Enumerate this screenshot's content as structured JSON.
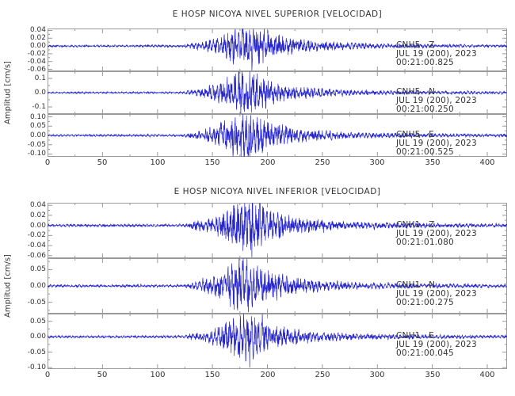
{
  "figure": {
    "background": "#ffffff",
    "waveform_color": "#2626cc",
    "axis_color": "#9a9a9a",
    "text_color": "#333333"
  },
  "chart_data": [
    {
      "type": "line",
      "title": "E HOSP NICOYA NIVEL SUPERIOR [VELOCIDAD]",
      "ylabel": "Amplitud [cm/s]",
      "xlabel": "",
      "xlim": [
        0,
        418
      ],
      "xticks": [
        0,
        50,
        100,
        150,
        200,
        250,
        300,
        350,
        400
      ],
      "xtick_minor_interval": 25,
      "grid": false,
      "legend": "none",
      "series": [
        {
          "name": "CNH5 Z",
          "name_label": "CNH5   Z",
          "station": "CNH5",
          "component": "Z",
          "date_label": "JUL 19 (200), 2023",
          "time_label": "00:21:00.825",
          "ylim": [
            -0.065,
            0.045
          ],
          "ytick_values": [
            0.04,
            0.02,
            0,
            -0.02,
            -0.04,
            -0.06
          ],
          "ytick_labels": [
            "0.04",
            "0.02",
            "0.00",
            "-0.02",
            "-0.04",
            "-0.06"
          ],
          "peak_amplitude": 0.043,
          "envelope": [
            [
              0,
              0.05
            ],
            [
              100,
              0.055
            ],
            [
              124,
              0.06
            ],
            [
              130,
              0.14
            ],
            [
              140,
              0.22
            ],
            [
              152,
              0.35
            ],
            [
              162,
              0.6
            ],
            [
              172,
              0.95
            ],
            [
              185,
              1.0
            ],
            [
              196,
              0.8
            ],
            [
              208,
              0.55
            ],
            [
              220,
              0.4
            ],
            [
              235,
              0.3
            ],
            [
              252,
              0.22
            ],
            [
              272,
              0.17
            ],
            [
              295,
              0.13
            ],
            [
              320,
              0.11
            ],
            [
              350,
              0.09
            ],
            [
              380,
              0.08
            ],
            [
              418,
              0.07
            ]
          ],
          "spikes": [
            [
              186,
              -0.063
            ]
          ],
          "seed": 11
        },
        {
          "name": "CNH5 N",
          "name_label": "CNH5   N",
          "station": "CNH5",
          "component": "N",
          "date_label": "JUL 19 (200), 2023",
          "time_label": "00:21:00.250",
          "ylim": [
            -0.15,
            0.15
          ],
          "ytick_values": [
            0.1,
            0,
            -0.1
          ],
          "ytick_labels": [
            "0.1",
            "0.0",
            "-0.1"
          ],
          "peak_amplitude": 0.125,
          "envelope": [
            [
              0,
              0.04
            ],
            [
              100,
              0.045
            ],
            [
              124,
              0.05
            ],
            [
              130,
              0.12
            ],
            [
              140,
              0.2
            ],
            [
              150,
              0.35
            ],
            [
              160,
              0.62
            ],
            [
              170,
              0.95
            ],
            [
              182,
              1.0
            ],
            [
              194,
              0.78
            ],
            [
              206,
              0.5
            ],
            [
              220,
              0.35
            ],
            [
              235,
              0.26
            ],
            [
              252,
              0.19
            ],
            [
              272,
              0.14
            ],
            [
              295,
              0.11
            ],
            [
              320,
              0.09
            ],
            [
              350,
              0.08
            ],
            [
              380,
              0.07
            ],
            [
              418,
              0.06
            ]
          ],
          "spikes": [],
          "seed": 22
        },
        {
          "name": "CNH5 E",
          "name_label": "CNH5   E",
          "station": "CNH5",
          "component": "E",
          "date_label": "JUL 19 (200), 2023",
          "time_label": "00:21:00.525",
          "ylim": [
            -0.115,
            0.115
          ],
          "ytick_values": [
            0.1,
            0.05,
            0,
            -0.05,
            -0.1
          ],
          "ytick_labels": [
            "0.10",
            "0.05",
            "0.00",
            "-0.05",
            "-0.10"
          ],
          "peak_amplitude": 0.105,
          "envelope": [
            [
              0,
              0.04
            ],
            [
              100,
              0.05
            ],
            [
              124,
              0.055
            ],
            [
              130,
              0.13
            ],
            [
              140,
              0.22
            ],
            [
              152,
              0.38
            ],
            [
              162,
              0.65
            ],
            [
              172,
              0.95
            ],
            [
              184,
              1.0
            ],
            [
              196,
              0.75
            ],
            [
              208,
              0.5
            ],
            [
              220,
              0.36
            ],
            [
              235,
              0.27
            ],
            [
              252,
              0.2
            ],
            [
              272,
              0.15
            ],
            [
              295,
              0.12
            ],
            [
              320,
              0.1
            ],
            [
              350,
              0.085
            ],
            [
              380,
              0.075
            ],
            [
              418,
              0.065
            ]
          ],
          "spikes": [
            [
              184,
              -0.112
            ]
          ],
          "seed": 33
        }
      ]
    },
    {
      "type": "line",
      "title": "E HOSP NICOYA NIVEL INFERIOR [VELOCIDAD]",
      "ylabel": "Amplitud [cm/s]",
      "xlabel": "",
      "xlim": [
        0,
        418
      ],
      "xticks": [
        0,
        50,
        100,
        150,
        200,
        250,
        300,
        350,
        400
      ],
      "xtick_minor_interval": 25,
      "grid": false,
      "legend": "none",
      "series": [
        {
          "name": "CNH1 Z",
          "name_label": "CNH1   Z",
          "station": "CNH1",
          "component": "Z",
          "date_label": "JUL 19 (200), 2023",
          "time_label": "00:21:01.080",
          "ylim": [
            -0.065,
            0.045
          ],
          "ytick_values": [
            0.04,
            0.02,
            0,
            -0.02,
            -0.04,
            -0.06
          ],
          "ytick_labels": [
            "0.04",
            "0.02",
            "0.00",
            "-0.02",
            "-0.04",
            "-0.06"
          ],
          "peak_amplitude": 0.042,
          "envelope": [
            [
              0,
              0.05
            ],
            [
              100,
              0.055
            ],
            [
              124,
              0.06
            ],
            [
              130,
              0.14
            ],
            [
              140,
              0.22
            ],
            [
              152,
              0.36
            ],
            [
              162,
              0.62
            ],
            [
              172,
              0.95
            ],
            [
              185,
              1.0
            ],
            [
              196,
              0.78
            ],
            [
              208,
              0.52
            ],
            [
              220,
              0.38
            ],
            [
              235,
              0.29
            ],
            [
              252,
              0.21
            ],
            [
              272,
              0.16
            ],
            [
              295,
              0.13
            ],
            [
              320,
              0.11
            ],
            [
              350,
              0.09
            ],
            [
              380,
              0.08
            ],
            [
              418,
              0.07
            ]
          ],
          "spikes": [
            [
              186,
              -0.063
            ]
          ],
          "seed": 44
        },
        {
          "name": "CNH1 N",
          "name_label": "CNH1   N",
          "station": "CNH1",
          "component": "N",
          "date_label": "JUL 19 (200), 2023",
          "time_label": "00:21:00.275",
          "ylim": [
            -0.085,
            0.085
          ],
          "ytick_values": [
            0.05,
            0,
            -0.05
          ],
          "ytick_labels": [
            "0.05",
            "0.00",
            "-0.05"
          ],
          "peak_amplitude": 0.068,
          "envelope": [
            [
              0,
              0.045
            ],
            [
              100,
              0.05
            ],
            [
              124,
              0.055
            ],
            [
              130,
              0.12
            ],
            [
              140,
              0.2
            ],
            [
              150,
              0.34
            ],
            [
              160,
              0.6
            ],
            [
              170,
              0.95
            ],
            [
              180,
              1.0
            ],
            [
              192,
              0.78
            ],
            [
              205,
              0.5
            ],
            [
              220,
              0.35
            ],
            [
              235,
              0.27
            ],
            [
              252,
              0.2
            ],
            [
              272,
              0.15
            ],
            [
              295,
              0.12
            ],
            [
              320,
              0.1
            ],
            [
              350,
              0.085
            ],
            [
              380,
              0.075
            ],
            [
              418,
              0.065
            ]
          ],
          "spikes": [],
          "seed": 55
        },
        {
          "name": "CNH1 E",
          "name_label": "CNH1   E",
          "station": "CNH1",
          "component": "E",
          "date_label": "JUL 19 (200), 2023",
          "time_label": "00:21:00.045",
          "ylim": [
            -0.105,
            0.075
          ],
          "ytick_values": [
            0.05,
            0,
            -0.05,
            -0.1
          ],
          "ytick_labels": [
            "0.05",
            "0.00",
            "-0.05",
            "-0.10"
          ],
          "peak_amplitude": 0.06,
          "envelope": [
            [
              0,
              0.05
            ],
            [
              100,
              0.055
            ],
            [
              124,
              0.06
            ],
            [
              130,
              0.14
            ],
            [
              140,
              0.23
            ],
            [
              152,
              0.38
            ],
            [
              162,
              0.66
            ],
            [
              172,
              0.96
            ],
            [
              184,
              1.0
            ],
            [
              196,
              0.76
            ],
            [
              208,
              0.5
            ],
            [
              220,
              0.37
            ],
            [
              235,
              0.28
            ],
            [
              252,
              0.21
            ],
            [
              272,
              0.16
            ],
            [
              295,
              0.13
            ],
            [
              320,
              0.11
            ],
            [
              350,
              0.09
            ],
            [
              380,
              0.08
            ],
            [
              418,
              0.07
            ]
          ],
          "spikes": [
            [
              184,
              -0.1
            ]
          ],
          "seed": 66
        }
      ]
    }
  ]
}
